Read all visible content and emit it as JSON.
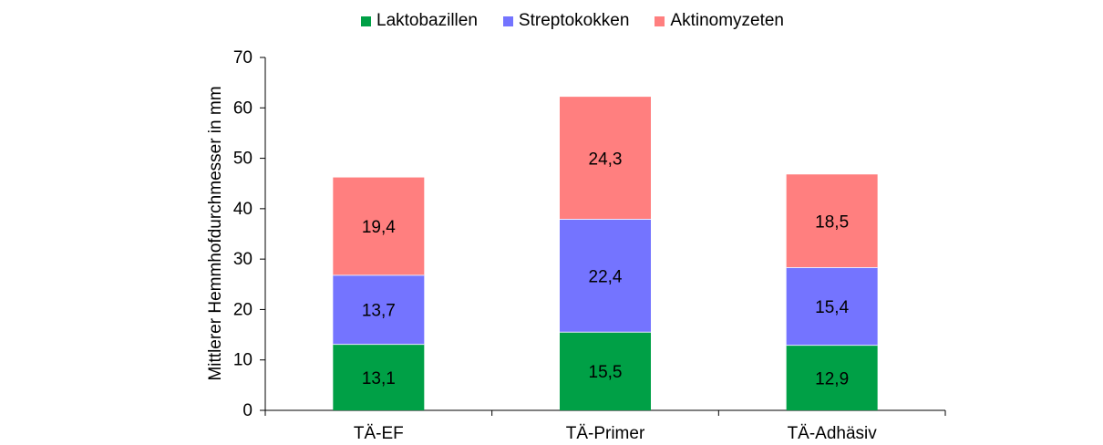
{
  "chart_data": {
    "type": "bar",
    "stacked": true,
    "categories": [
      "TÄ-EF",
      "TÄ-Primer",
      "TÄ-Adhäsiv"
    ],
    "series": [
      {
        "name": "Laktobazillen",
        "values": [
          13.1,
          15.5,
          12.9
        ],
        "labels": [
          "13,1",
          "15,5",
          "12,9"
        ],
        "color": "#00a046"
      },
      {
        "name": "Streptokokken",
        "values": [
          13.7,
          22.4,
          15.4
        ],
        "labels": [
          "13,7",
          "22,4",
          "15,4"
        ],
        "color": "#7474ff"
      },
      {
        "name": "Aktinomyzeten",
        "values": [
          19.4,
          24.3,
          18.5
        ],
        "labels": [
          "19,4",
          "24,3",
          "18,5"
        ],
        "color": "#ff7f7f"
      }
    ],
    "ylabel": "Mittlerer Hemmhofdurchmesser in mm",
    "xlabel": "",
    "ylim": [
      0,
      70
    ],
    "yticks": [
      0,
      10,
      20,
      30,
      40,
      50,
      60,
      70
    ],
    "grid": false,
    "legend": "top"
  }
}
